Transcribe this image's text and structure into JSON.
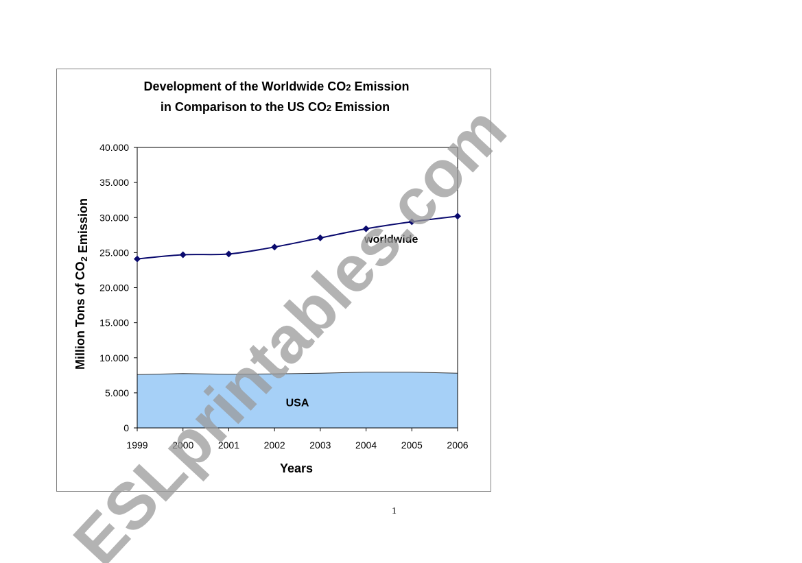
{
  "page": {
    "number": "1",
    "watermark": "ESLprintables.com"
  },
  "chart_data": {
    "type": "line",
    "title_line1": "Development of the Worldwide CO2 Emission",
    "title_line2": "in Comparison to the US CO2 Emission",
    "xlabel": "Years",
    "ylabel": "Million Tons of CO2 Emission",
    "x": [
      "1999",
      "2000",
      "2001",
      "2002",
      "2003",
      "2004",
      "2005",
      "2006"
    ],
    "ylim": [
      0,
      40000
    ],
    "y_ticks": [
      "0",
      "5.000",
      "10.000",
      "15.000",
      "20.000",
      "25.000",
      "30.000",
      "35.000",
      "40.000"
    ],
    "grid": false,
    "series": [
      {
        "name": "worldwide",
        "kind": "line-markers",
        "color": "#0a0a6e",
        "values": [
          24100,
          24700,
          24800,
          25800,
          27100,
          28400,
          29400,
          30200
        ]
      },
      {
        "name": "USA",
        "kind": "area",
        "color": "#a6d0f7",
        "values": [
          7600,
          7750,
          7650,
          7700,
          7800,
          7950,
          7950,
          7800
        ]
      }
    ]
  }
}
